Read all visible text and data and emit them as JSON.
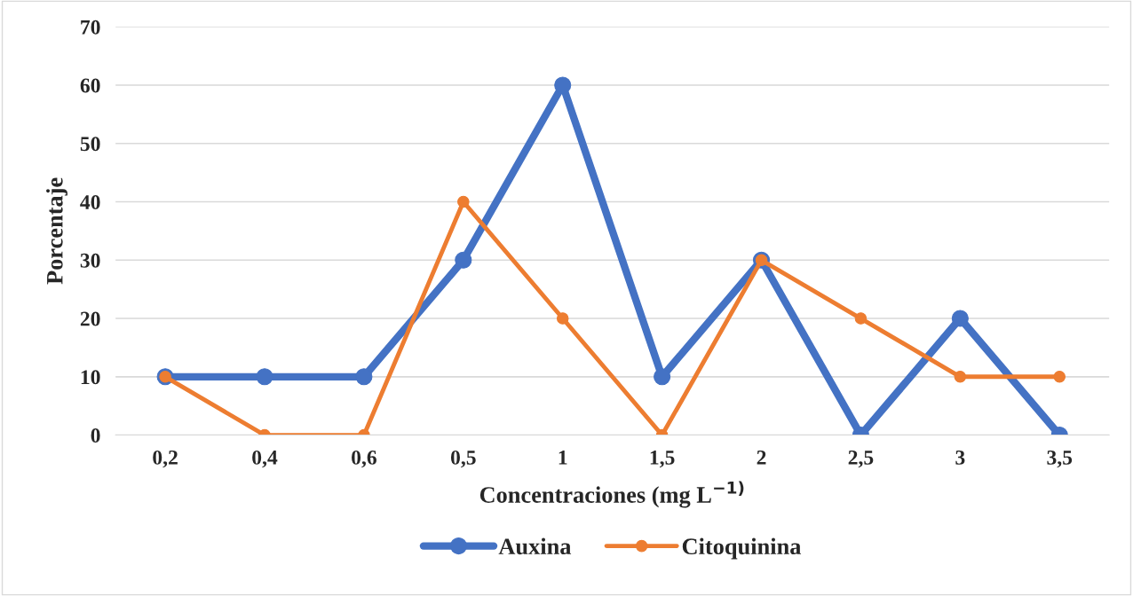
{
  "chart_data": {
    "type": "line",
    "categories": [
      "0,2",
      "0,4",
      "0,6",
      "0,5",
      "1",
      "1,5",
      "2",
      "2,5",
      "3",
      "3,5"
    ],
    "series": [
      {
        "name": "Auxina",
        "color": "#4472c4",
        "values": [
          10,
          10,
          10,
          30,
          60,
          10,
          30,
          0,
          20,
          0
        ]
      },
      {
        "name": "Citoquinina",
        "color": "#ed7d31",
        "values": [
          10,
          0,
          0,
          40,
          20,
          0,
          30,
          20,
          10,
          10
        ]
      }
    ],
    "xlabel": "Concentraciones (mg L$^{−1)}$",
    "ylabel": "Porcentaje",
    "ylim": [
      0,
      70
    ],
    "yticks": [
      0,
      10,
      20,
      30,
      40,
      50,
      60,
      70
    ],
    "grid": "y",
    "legend": "bottom",
    "marker": "circle",
    "line_style": "solid"
  }
}
